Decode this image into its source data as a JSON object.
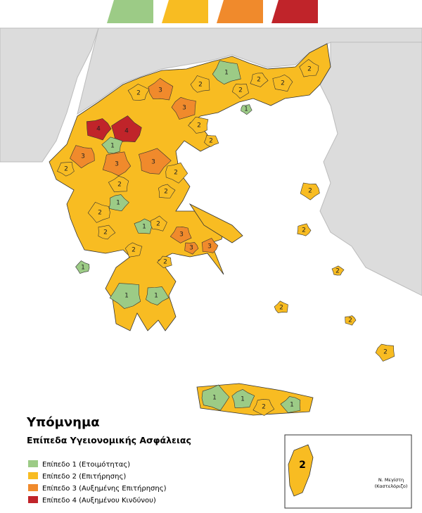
{
  "legend": {
    "title": "Υπόμνημα",
    "subtitle": "Επίπεδα Υγειονομικής Ασφάλειας",
    "items": [
      {
        "label": "Επίπεδο 1 (Ετοιμότητας)",
        "color": "#9ccb86"
      },
      {
        "label": "Επίπεδο 2 (Επιτήρησης)",
        "color": "#f8bc22"
      },
      {
        "label": "Επίπεδο 3 (Αυξημένης Επιτήρησης)",
        "color": "#f08a2c"
      },
      {
        "label": "Επίπεδο 4 (Αυξημένου Κινδύνου)",
        "color": "#c0242a"
      }
    ]
  },
  "regions": [
    {
      "level": 4
    },
    {
      "level": 4
    },
    {
      "level": 1
    },
    {
      "level": 1
    },
    {
      "level": 1
    },
    {
      "level": 1
    },
    {
      "level": 1
    },
    {
      "level": 1
    },
    {
      "level": 1
    },
    {
      "level": 1
    },
    {
      "level": 1
    },
    {
      "level": 1
    },
    {
      "level": 1
    },
    {
      "level": 3
    },
    {
      "level": 3
    },
    {
      "level": 3
    },
    {
      "level": 3
    },
    {
      "level": 3
    },
    {
      "level": 3
    },
    {
      "level": 3
    },
    {
      "level": 3
    },
    {
      "level": 2
    },
    {
      "level": 2
    },
    {
      "level": 2
    },
    {
      "level": 2
    },
    {
      "level": 2
    },
    {
      "level": 2
    },
    {
      "level": 2
    },
    {
      "level": 2
    },
    {
      "level": 2
    },
    {
      "level": 2
    },
    {
      "level": 2
    },
    {
      "level": 2
    },
    {
      "level": 2
    },
    {
      "level": 2
    },
    {
      "level": 2
    },
    {
      "level": 2
    },
    {
      "level": 2
    },
    {
      "level": 2
    },
    {
      "level": 2
    },
    {
      "level": 2
    },
    {
      "level": 2
    },
    {
      "level": 2
    },
    {
      "level": 2
    },
    {
      "level": 2
    }
  ],
  "inset": {
    "level": 2,
    "name": "Ν. Μεγίστη",
    "note": "(Καστελόριζο)"
  }
}
